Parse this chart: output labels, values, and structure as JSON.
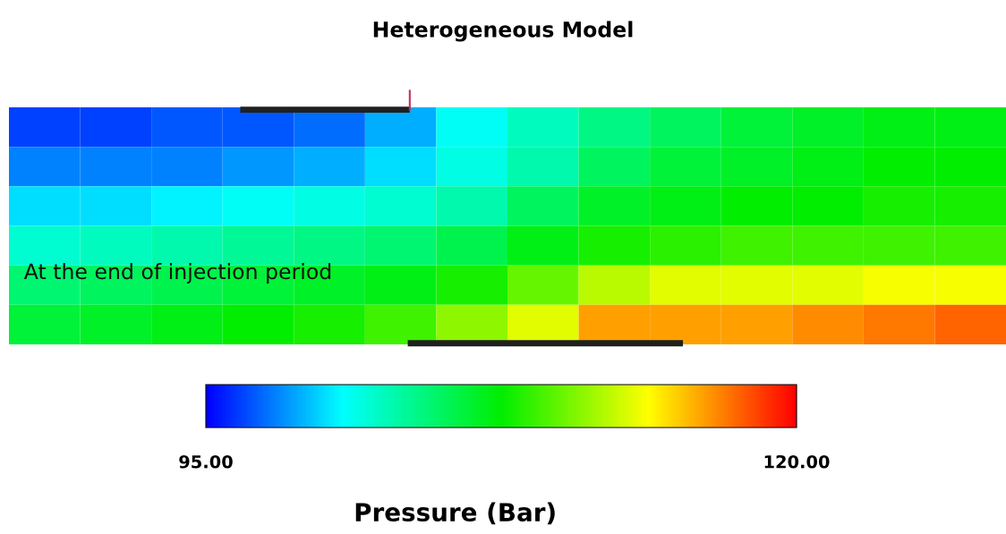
{
  "chart_data": {
    "type": "heatmap",
    "title": "Heterogeneous Model",
    "clabel": "Pressure (Bar)",
    "categories": [
      null,
      null,
      null,
      null,
      null,
      null,
      null,
      null,
      null,
      null,
      null,
      null,
      null,
      null
    ],
    "y_categories": [
      null,
      null,
      null,
      null,
      null,
      null
    ],
    "cells": [
      [
        96.5,
        96.5,
        97,
        97,
        97.5,
        99,
        101,
        102.5,
        104,
        105,
        106,
        106.5,
        107,
        107
      ],
      [
        98,
        98,
        98,
        98.5,
        99,
        100,
        101.5,
        103,
        105,
        106,
        106.5,
        107,
        107.5,
        107.5
      ],
      [
        100,
        100,
        100.5,
        101,
        101.5,
        102,
        103,
        105,
        106.5,
        107,
        107.5,
        107.5,
        108,
        108
      ],
      [
        102,
        102.5,
        103,
        103.5,
        104,
        104.5,
        105.5,
        107,
        108,
        108.5,
        109,
        109,
        109,
        109
      ],
      [
        104.5,
        105,
        105.5,
        106,
        106.5,
        107,
        108,
        110,
        112,
        113,
        113,
        113,
        113.5,
        113.5
      ],
      [
        106,
        106.5,
        107,
        107.5,
        108,
        109,
        111,
        113,
        116,
        116,
        116,
        116.5,
        117,
        117.5
      ]
    ],
    "clim": [
      95,
      120
    ],
    "cticks": [
      {
        "value": 95,
        "label": "95.00"
      },
      {
        "value": 120,
        "label": "120.00"
      }
    ],
    "tick_labels": false,
    "annotations": [
      "At the end of injection period"
    ]
  }
}
